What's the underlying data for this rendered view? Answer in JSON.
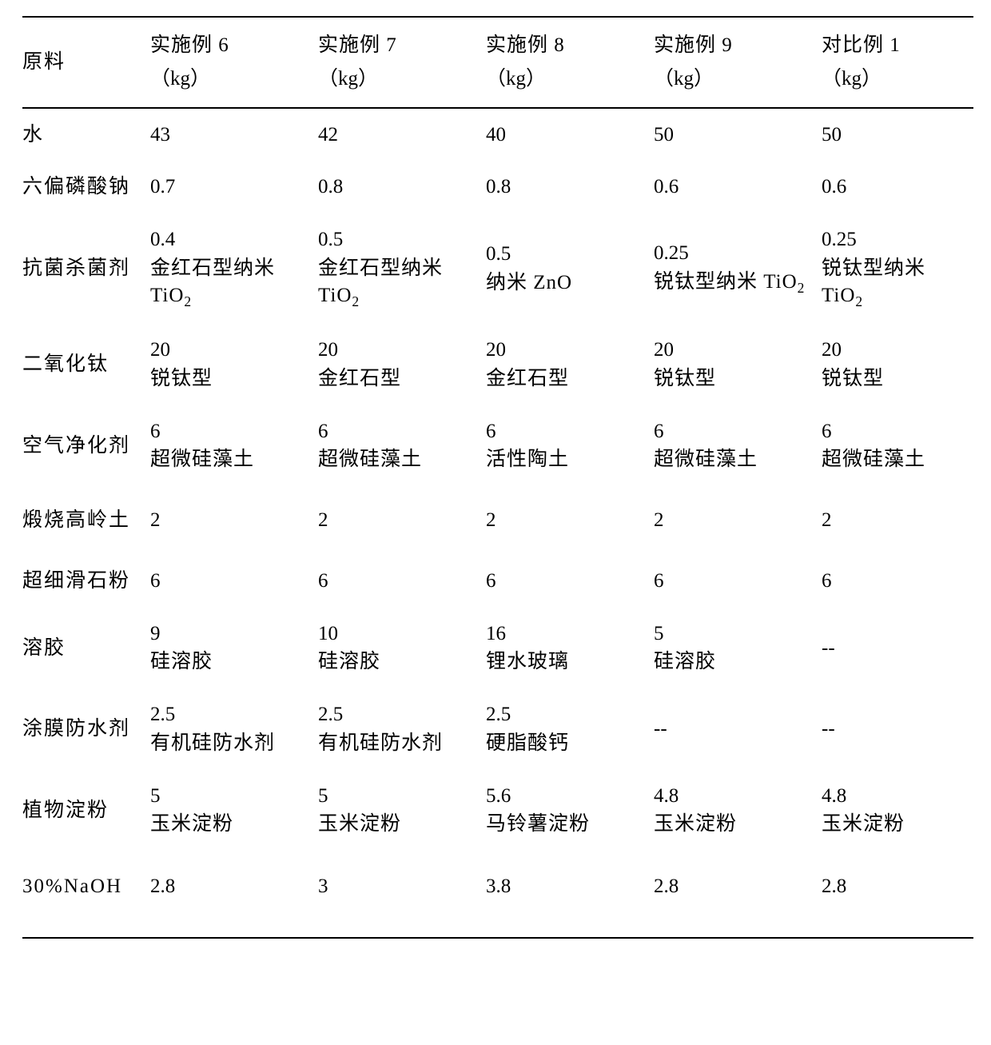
{
  "table": {
    "background_color": "#ffffff",
    "text_color": "#000000",
    "border_color": "#000000",
    "font_family_serif": "Times New Roman / SimSun",
    "font_size_pt": 19,
    "columns": [
      {
        "line1": "原料",
        "line2": ""
      },
      {
        "line1": "实施例 6",
        "line2": "（kg）"
      },
      {
        "line1": "实施例 7",
        "line2": "（kg）"
      },
      {
        "line1": "实施例 8",
        "line2": "（kg）"
      },
      {
        "line1": "实施例 9",
        "line2": "（kg）"
      },
      {
        "line1": "对比例 1",
        "line2": "（kg）"
      }
    ],
    "rows": [
      {
        "label": "水",
        "cells": [
          {
            "value": "43",
            "sub": ""
          },
          {
            "value": "42",
            "sub": ""
          },
          {
            "value": "40",
            "sub": ""
          },
          {
            "value": "50",
            "sub": ""
          },
          {
            "value": "50",
            "sub": ""
          }
        ]
      },
      {
        "label": "六偏磷酸钠",
        "cells": [
          {
            "value": "0.7",
            "sub": ""
          },
          {
            "value": "0.8",
            "sub": ""
          },
          {
            "value": "0.8",
            "sub": ""
          },
          {
            "value": "0.6",
            "sub": ""
          },
          {
            "value": "0.6",
            "sub": ""
          }
        ]
      },
      {
        "label": "抗菌杀菌剂",
        "cells": [
          {
            "value": "0.4",
            "sub": "金红石型纳米 TiO₂"
          },
          {
            "value": "0.5",
            "sub": "金红石型纳米 TiO₂"
          },
          {
            "value": "0.5",
            "sub": "纳米 ZnO"
          },
          {
            "value": "0.25",
            "sub": "锐钛型纳米 TiO₂"
          },
          {
            "value": "0.25",
            "sub": "锐钛型纳米 TiO₂"
          }
        ]
      },
      {
        "label": "二氧化钛",
        "cells": [
          {
            "value": "20",
            "sub": "锐钛型"
          },
          {
            "value": "20",
            "sub": "金红石型"
          },
          {
            "value": "20",
            "sub": "金红石型"
          },
          {
            "value": "20",
            "sub": "锐钛型"
          },
          {
            "value": "20",
            "sub": "锐钛型"
          }
        ]
      },
      {
        "label": "空气净化剂",
        "cells": [
          {
            "value": "6",
            "sub": "超微硅藻土"
          },
          {
            "value": "6",
            "sub": "超微硅藻土"
          },
          {
            "value": "6",
            "sub": "活性陶土"
          },
          {
            "value": "6",
            "sub": "超微硅藻土"
          },
          {
            "value": "6",
            "sub": "超微硅藻土"
          }
        ]
      },
      {
        "label": "煅烧高岭土",
        "tall": true,
        "cells": [
          {
            "value": "2",
            "sub": ""
          },
          {
            "value": "2",
            "sub": ""
          },
          {
            "value": "2",
            "sub": ""
          },
          {
            "value": "2",
            "sub": ""
          },
          {
            "value": "2",
            "sub": ""
          }
        ]
      },
      {
        "label": "超细滑石粉",
        "cells": [
          {
            "value": "6",
            "sub": ""
          },
          {
            "value": "6",
            "sub": ""
          },
          {
            "value": "6",
            "sub": ""
          },
          {
            "value": "6",
            "sub": ""
          },
          {
            "value": "6",
            "sub": ""
          }
        ]
      },
      {
        "label": "溶胶",
        "cells": [
          {
            "value": "9",
            "sub": "硅溶胶"
          },
          {
            "value": "10",
            "sub": "硅溶胶"
          },
          {
            "value": "16",
            "sub": "锂水玻璃"
          },
          {
            "value": "5",
            "sub": "硅溶胶"
          },
          {
            "value": "--",
            "sub": ""
          }
        ]
      },
      {
        "label": "涂膜防水剂",
        "cells": [
          {
            "value": "2.5",
            "sub": "有机硅防水剂"
          },
          {
            "value": "2.5",
            "sub": "有机硅防水剂"
          },
          {
            "value": "2.5",
            "sub": "硬脂酸钙"
          },
          {
            "value": "--",
            "sub": ""
          },
          {
            "value": "--",
            "sub": ""
          }
        ]
      },
      {
        "label": "植物淀粉",
        "cells": [
          {
            "value": "5",
            "sub": "玉米淀粉"
          },
          {
            "value": "5",
            "sub": "玉米淀粉"
          },
          {
            "value": "5.6",
            "sub": "马铃薯淀粉"
          },
          {
            "value": "4.8",
            "sub": "玉米淀粉"
          },
          {
            "value": "4.8",
            "sub": "玉米淀粉"
          }
        ]
      },
      {
        "label": "30%NaOH",
        "xtall": true,
        "cells": [
          {
            "value": "2.8",
            "sub": ""
          },
          {
            "value": "3",
            "sub": ""
          },
          {
            "value": "3.8",
            "sub": ""
          },
          {
            "value": "2.8",
            "sub": ""
          },
          {
            "value": "2.8",
            "sub": ""
          }
        ]
      }
    ]
  }
}
